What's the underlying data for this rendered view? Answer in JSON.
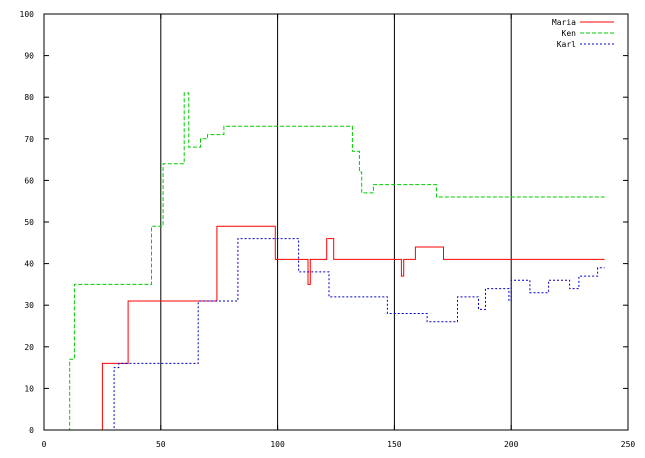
{
  "chart_data": {
    "type": "line",
    "step": true,
    "xlim": [
      0,
      250
    ],
    "ylim": [
      0,
      100
    ],
    "xticks": [
      0,
      50,
      100,
      150,
      200,
      250
    ],
    "yticks": [
      0,
      10,
      20,
      30,
      40,
      50,
      60,
      70,
      80,
      90,
      100
    ],
    "vertical_grid_at": [
      50,
      100,
      150,
      200
    ],
    "legend_position": "top-right",
    "series": [
      {
        "name": "Maria",
        "color": "#ff0000",
        "dash": "solid",
        "points": [
          [
            0,
            0
          ],
          [
            25,
            0
          ],
          [
            25,
            16
          ],
          [
            36,
            16
          ],
          [
            36,
            31
          ],
          [
            74,
            31
          ],
          [
            74,
            49
          ],
          [
            99,
            49
          ],
          [
            99,
            41
          ],
          [
            113,
            41
          ],
          [
            113,
            35
          ],
          [
            114,
            35
          ],
          [
            114,
            41
          ],
          [
            121,
            41
          ],
          [
            121,
            46
          ],
          [
            124,
            46
          ],
          [
            124,
            41
          ],
          [
            153,
            41
          ],
          [
            153,
            37
          ],
          [
            154,
            37
          ],
          [
            154,
            41
          ],
          [
            159,
            41
          ],
          [
            159,
            44
          ],
          [
            171,
            44
          ],
          [
            171,
            41
          ],
          [
            240,
            41
          ]
        ]
      },
      {
        "name": "Ken",
        "color": "#00cc00",
        "dash": "4,2",
        "points": [
          [
            0,
            0
          ],
          [
            11,
            0
          ],
          [
            11,
            17
          ],
          [
            13,
            17
          ],
          [
            13,
            35
          ],
          [
            46,
            35
          ],
          [
            46,
            49
          ],
          [
            51,
            49
          ],
          [
            51,
            64
          ],
          [
            60,
            64
          ],
          [
            60,
            81
          ],
          [
            62,
            81
          ],
          [
            62,
            68
          ],
          [
            67,
            68
          ],
          [
            67,
            70
          ],
          [
            70,
            70
          ],
          [
            70,
            71
          ],
          [
            77,
            71
          ],
          [
            77,
            73
          ],
          [
            132,
            73
          ],
          [
            132,
            67
          ],
          [
            135,
            67
          ],
          [
            135,
            62
          ],
          [
            136,
            62
          ],
          [
            136,
            57
          ],
          [
            141,
            57
          ],
          [
            141,
            59
          ],
          [
            168,
            59
          ],
          [
            168,
            56
          ],
          [
            240,
            56
          ]
        ]
      },
      {
        "name": "Karl",
        "color": "#0000cc",
        "dash": "2,2",
        "points": [
          [
            0,
            0
          ],
          [
            30,
            0
          ],
          [
            30,
            15
          ],
          [
            32,
            15
          ],
          [
            32,
            16
          ],
          [
            66,
            16
          ],
          [
            66,
            31
          ],
          [
            83,
            31
          ],
          [
            83,
            46
          ],
          [
            109,
            46
          ],
          [
            109,
            38
          ],
          [
            122,
            38
          ],
          [
            122,
            32
          ],
          [
            147,
            32
          ],
          [
            147,
            28
          ],
          [
            164,
            28
          ],
          [
            164,
            26
          ],
          [
            177,
            26
          ],
          [
            177,
            32
          ],
          [
            186,
            32
          ],
          [
            186,
            29
          ],
          [
            189,
            29
          ],
          [
            189,
            34
          ],
          [
            199,
            34
          ],
          [
            199,
            31
          ],
          [
            200,
            31
          ],
          [
            200,
            36
          ],
          [
            208,
            36
          ],
          [
            208,
            33
          ],
          [
            216,
            33
          ],
          [
            216,
            36
          ],
          [
            225,
            36
          ],
          [
            225,
            34
          ],
          [
            229,
            34
          ],
          [
            229,
            37
          ],
          [
            237,
            37
          ],
          [
            237,
            39
          ],
          [
            240,
            39
          ]
        ]
      }
    ]
  }
}
